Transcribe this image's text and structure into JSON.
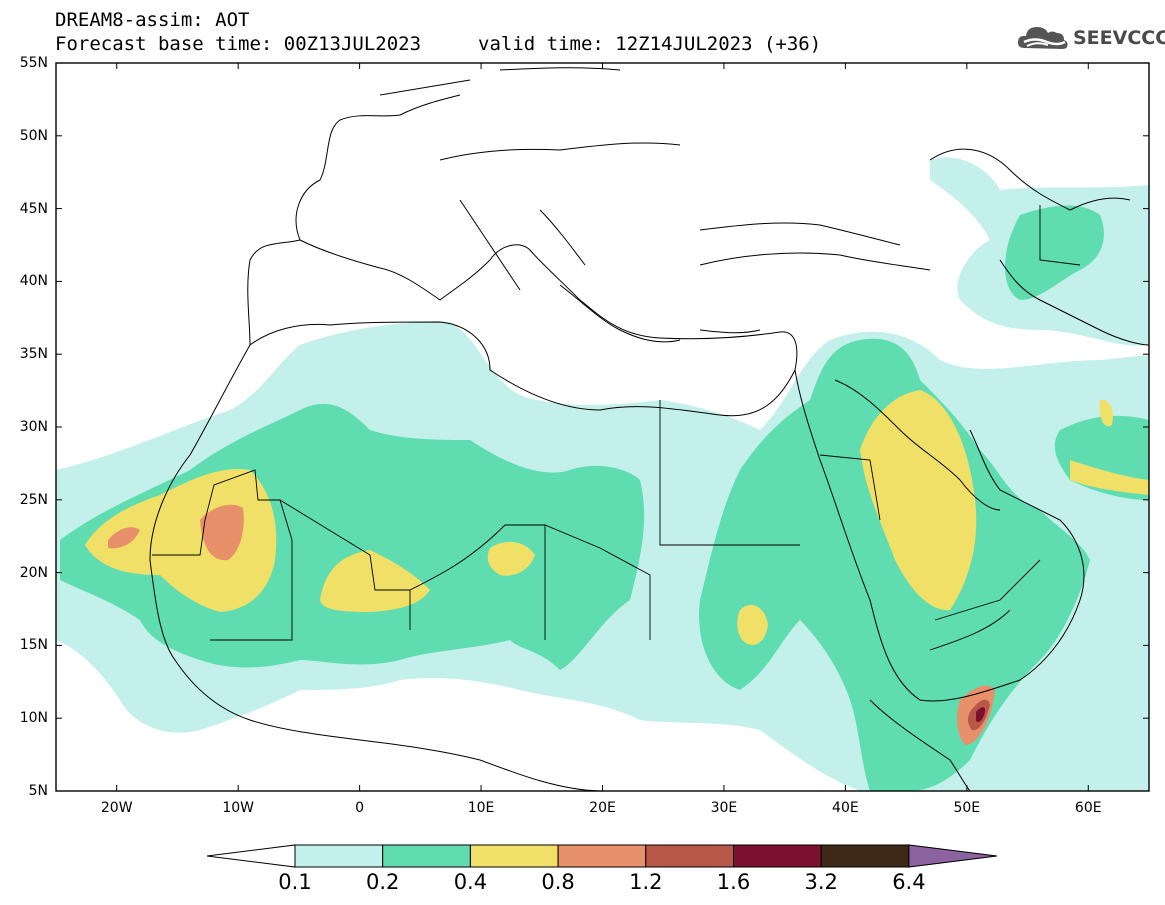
{
  "header": {
    "title_line1": "DREAM8-assim: AOT",
    "title_line2": "Forecast base time: 00Z13JUL2023",
    "valid_time": "valid time: 12Z14JUL2023 (+36)",
    "logo_text": "SEEVCCC"
  },
  "map": {
    "lat_labels": [
      "55N",
      "50N",
      "45N",
      "40N",
      "35N",
      "30N",
      "25N",
      "20N",
      "15N",
      "10N",
      "5N"
    ],
    "lon_labels": [
      "20W",
      "10W",
      "0",
      "10E",
      "20E",
      "30E",
      "40E",
      "50E",
      "60E"
    ],
    "lon_range": [
      -25,
      65
    ],
    "lat_range": [
      5,
      55
    ]
  },
  "colorbar": {
    "labels": [
      "0.1",
      "0.2",
      "0.4",
      "0.8",
      "1.2",
      "1.6",
      "3.2",
      "6.4"
    ],
    "colors": [
      "#c3f0ea",
      "#5fdcb0",
      "#f0e068",
      "#e8906a",
      "#b85848",
      "#7c1030",
      "#3e2818",
      "#8c62a0"
    ],
    "under_color": "#ffffff"
  }
}
